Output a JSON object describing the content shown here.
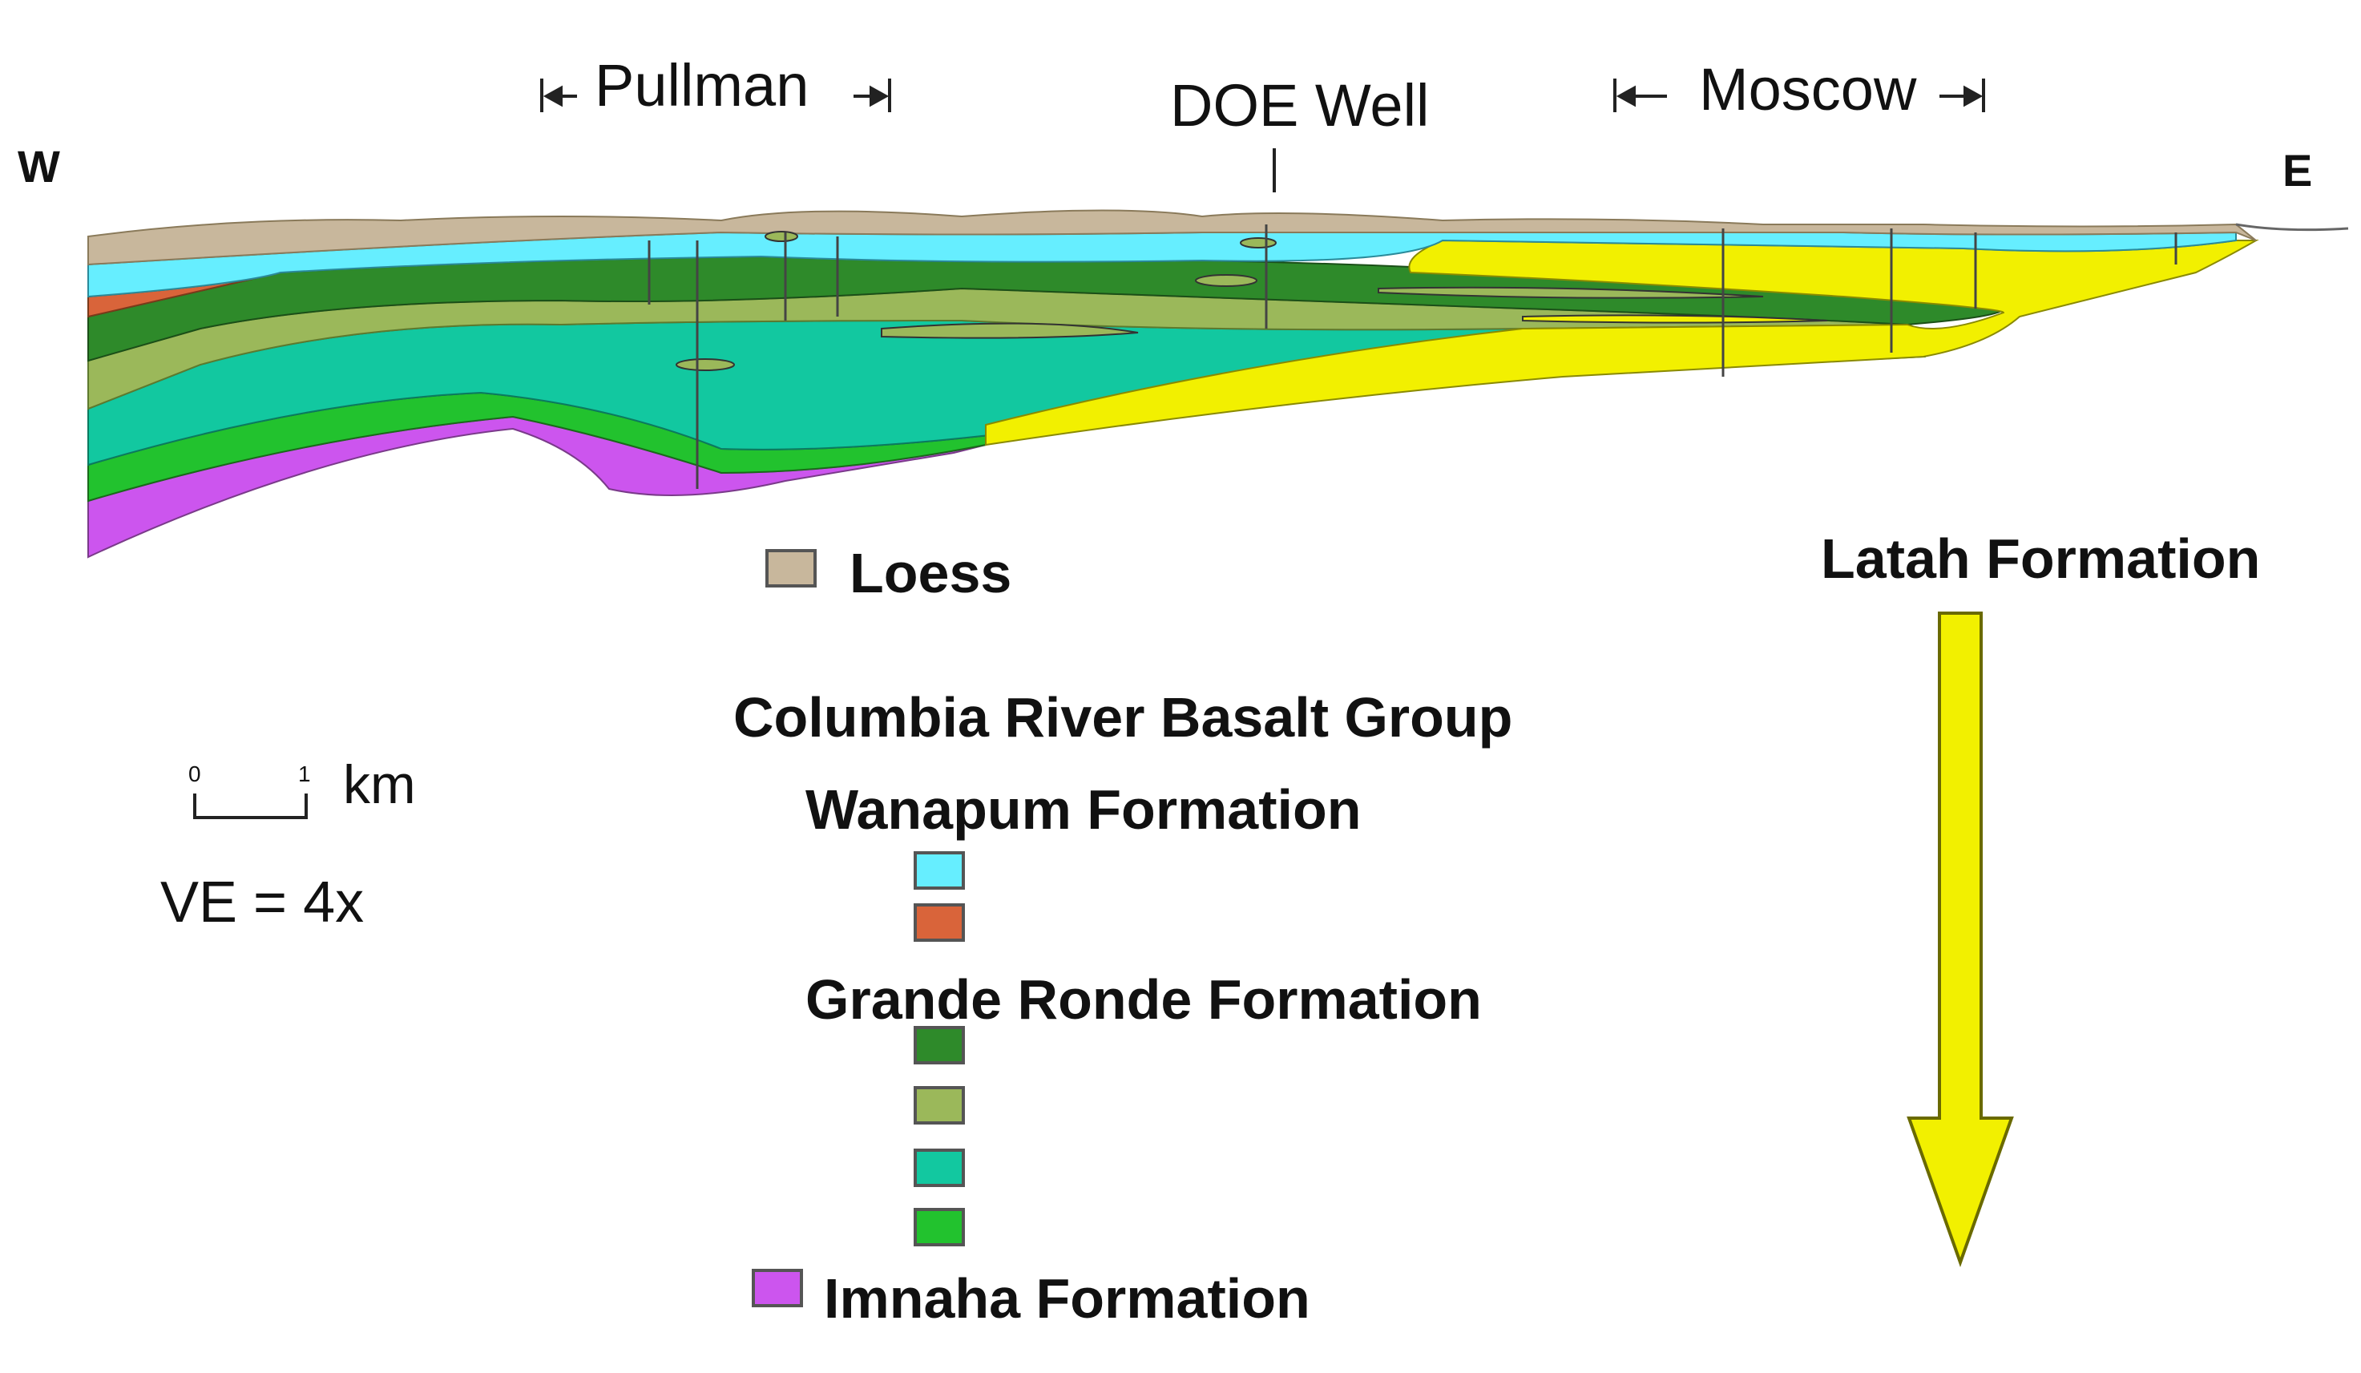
{
  "directions": {
    "west": "W",
    "east": "E"
  },
  "locations": {
    "pullman": "Pullman",
    "doe_well": "DOE Well",
    "moscow": "Moscow"
  },
  "scale": {
    "zero": "0",
    "one": "1",
    "unit": "km",
    "vertical_exaggeration": "VE = 4x"
  },
  "legend": {
    "loess": {
      "label": "Loess",
      "color": "#c8b79c"
    },
    "crbg_title": "Columbia River Basalt Group",
    "wanapum": {
      "label": "Wanapum Formation",
      "colors": [
        "#66eeff",
        "#d9643a"
      ]
    },
    "grande_ronde": {
      "label": "Grande Ronde Formation",
      "colors": [
        "#2e8a2a",
        "#9bb85a",
        "#12c8a0",
        "#22c22e"
      ]
    },
    "imnaha": {
      "label": "Imnaha Formation",
      "color": "#cc55ee"
    },
    "latah": {
      "label": "Latah Formation",
      "color": "#f2f000"
    }
  }
}
